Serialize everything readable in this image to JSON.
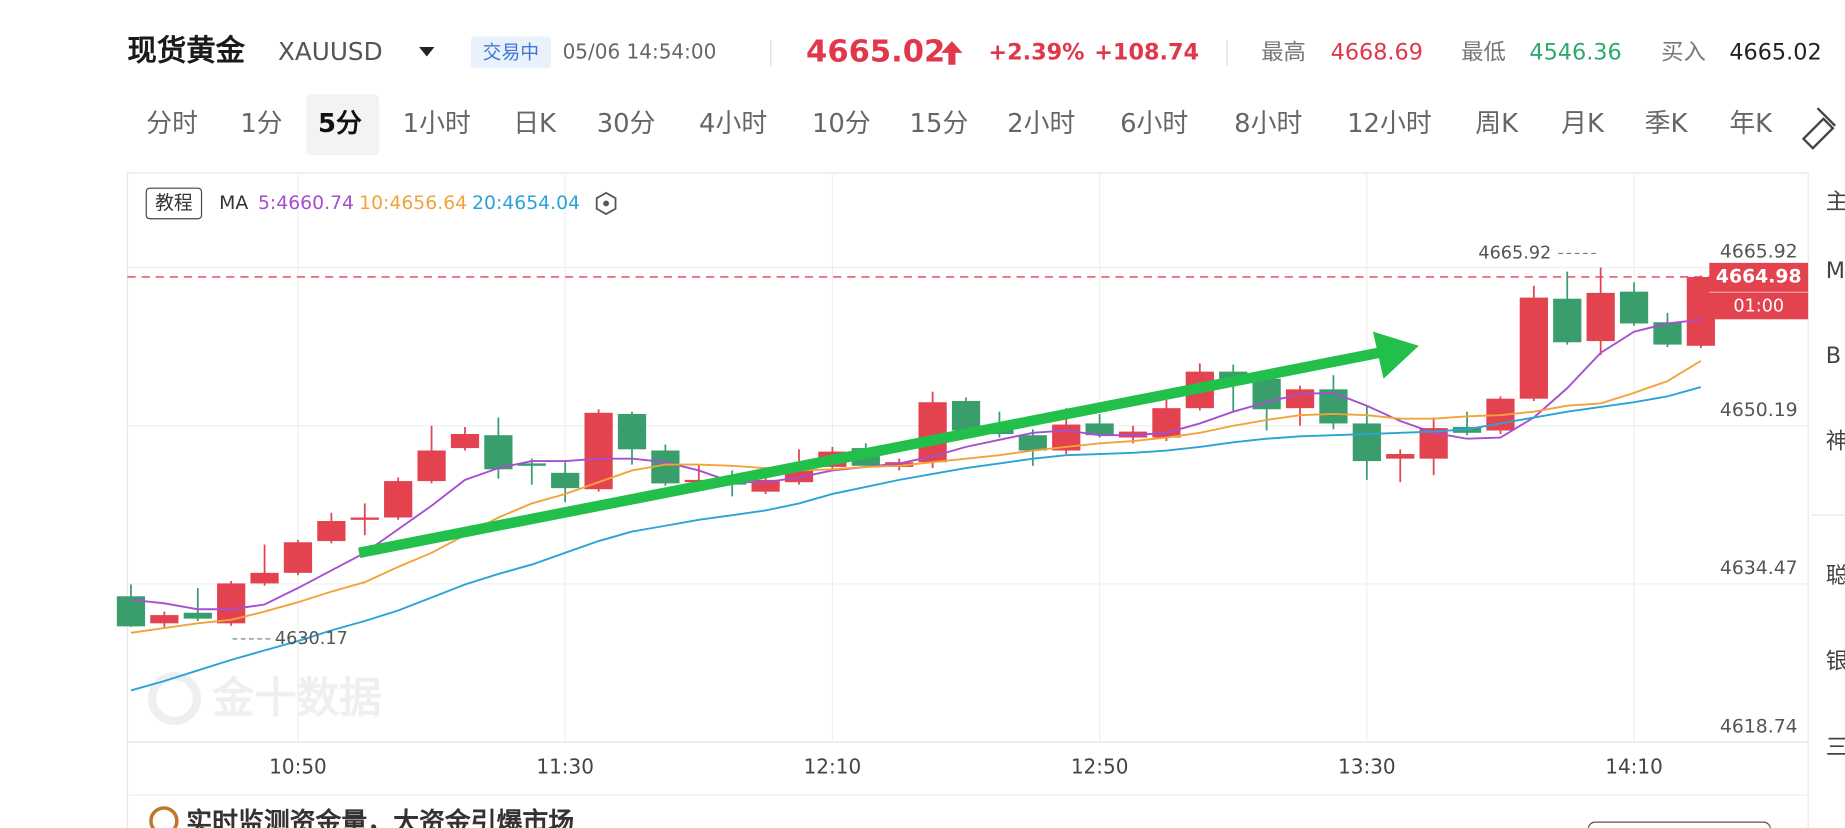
{
  "header": {
    "name": "现货黄金",
    "symbol": "XAUUSD",
    "status": "交易中",
    "time": "05/06 14:54:00",
    "price": 4665.02,
    "change_pct": "+2.39%",
    "change": "+108.74",
    "high_label": "最高",
    "high": 4668.69,
    "low_label": "最低",
    "low": 4546.36,
    "bid_label": "买入",
    "bid": 4665.02
  },
  "tabs": [
    "分时",
    "1分",
    "5分",
    "1小时",
    "日K",
    "30分",
    "4小时",
    "10分",
    "15分",
    "2小时",
    "6小时",
    "8小时",
    "12小时",
    "周K",
    "月K",
    "季K",
    "年K"
  ],
  "selected_tab": 2,
  "tutorial": "教程",
  "sidebar": [
    "主",
    "M",
    "B",
    "神",
    "聪",
    "银",
    "三"
  ],
  "watermark": "金十数据",
  "banner": "实时监测资金量，大资金引爆市场",
  "chart_data": {
    "type": "candlestick",
    "indicator": "MA",
    "countdown": "01:00",
    "categories": [
      null,
      null,
      null,
      null,
      null,
      "10:50",
      null,
      null,
      null,
      null,
      null,
      null,
      null,
      "11:30",
      null,
      null,
      null,
      null,
      null,
      null,
      null,
      "12:10",
      null,
      null,
      null,
      null,
      null,
      null,
      null,
      "12:50",
      null,
      null,
      null,
      null,
      null,
      null,
      null,
      "13:30",
      null,
      null,
      null,
      null,
      null,
      null,
      null,
      "14:10",
      null,
      null
    ],
    "open": [
      4633.24,
      4630.55,
      4631.6,
      4630.55,
      4634.52,
      4635.57,
      4638.73,
      4640.84,
      4641.07,
      4644.69,
      4647.97,
      4649.25,
      4646.45,
      4645.51,
      4643.88,
      4651.36,
      4647.73,
      4644.58,
      4644.81,
      4643.64,
      4644.58,
      4646.1,
      4647.97,
      4646.1,
      4646.57,
      4652.65,
      4650.19,
      4649.25,
      4647.73,
      4650.42,
      4649.02,
      4649.02,
      4651.94,
      4655.57,
      4654.87,
      4651.94,
      4653.81,
      4650.42,
      4646.92,
      4646.92,
      4650.07,
      4649.72,
      4652.88,
      4662.82,
      4658.61,
      4663.52,
      4660.48,
      4658.14
    ],
    "high": [
      4634.41,
      4631.72,
      4634.06,
      4634.76,
      4638.38,
      4638.85,
      4641.54,
      4642.47,
      4645.05,
      4650.19,
      4650.07,
      4651.01,
      4646.92,
      4646.57,
      4651.83,
      4651.59,
      4648.32,
      4646.33,
      4645.75,
      4645.51,
      4647.85,
      4648.09,
      4648.44,
      4646.92,
      4653.58,
      4653.0,
      4651.59,
      4649.84,
      4651.94,
      4651.36,
      4650.19,
      4652.76,
      4656.39,
      4656.27,
      4655.1,
      4654.17,
      4655.22,
      4652.18,
      4647.85,
      4651.01,
      4651.59,
      4653.11,
      4664.1,
      4665.51,
      4665.92,
      4664.45,
      4661.41,
      4665.1
    ],
    "low": [
      4630.2,
      4630.17,
      4630.78,
      4630.31,
      4634.29,
      4635.34,
      4638.5,
      4639.32,
      4640.84,
      4644.46,
      4647.73,
      4644.93,
      4644.34,
      4642.59,
      4643.64,
      4646.33,
      4644.23,
      4643.99,
      4643.17,
      4643.41,
      4644.34,
      4645.75,
      4645.98,
      4645.75,
      4645.98,
      4649.25,
      4649.02,
      4646.21,
      4647.38,
      4649.02,
      4648.44,
      4648.67,
      4651.71,
      4651.59,
      4649.72,
      4650.19,
      4649.84,
      4644.81,
      4644.58,
      4645.28,
      4649.25,
      4649.37,
      4652.65,
      4658.26,
      4657.21,
      4660.13,
      4658.02,
      4657.91
    ],
    "close": [
      4630.25,
      4631.37,
      4631.02,
      4634.52,
      4635.57,
      4638.61,
      4640.72,
      4641.07,
      4644.69,
      4647.73,
      4649.37,
      4645.86,
      4646.21,
      4643.99,
      4651.48,
      4647.85,
      4644.46,
      4644.81,
      4644.34,
      4644.81,
      4646.1,
      4647.62,
      4646.21,
      4646.57,
      4652.53,
      4649.72,
      4649.37,
      4647.73,
      4650.31,
      4649.25,
      4649.61,
      4651.94,
      4655.57,
      4654.87,
      4651.83,
      4653.81,
      4650.42,
      4646.68,
      4647.38,
      4649.96,
      4649.49,
      4652.88,
      4662.93,
      4658.49,
      4663.4,
      4660.36,
      4658.26,
      4664.98
    ],
    "up_color": "#e3424f",
    "down_color": "#3a9d6c",
    "series": [
      {
        "name": "5:4660.74",
        "color": "#a64fd0",
        "values": [
          4632.89,
          4632.54,
          4631.95,
          4631.95,
          4632.42,
          4634.06,
          4635.81,
          4637.56,
          4639.9,
          4642.24,
          4644.81,
          4645.98,
          4646.68,
          4646.68,
          4646.92,
          4646.92,
          4646.57,
          4645.75,
          4644.58,
          4644.58,
          4645.05,
          4645.75,
          4646.1,
          4646.45,
          4647.15,
          4648.09,
          4648.79,
          4649.49,
          4649.72,
          4649.25,
          4649.25,
          4649.49,
          4650.42,
          4651.59,
          4652.53,
          4653.35,
          4653.46,
          4652.18,
          4650.66,
          4649.49,
          4648.9,
          4649.02,
          4651.01,
          4653.93,
          4657.44,
          4659.54,
          4660.36,
          4660.74
        ]
      },
      {
        "name": "10:4656.64",
        "color": "#f2a33a",
        "values": [
          4629.61,
          4630.08,
          4630.55,
          4630.9,
          4631.72,
          4632.65,
          4633.7,
          4634.64,
          4636.16,
          4637.56,
          4639.32,
          4641.07,
          4642.47,
          4643.41,
          4644.58,
          4645.75,
          4646.33,
          4646.33,
          4646.21,
          4645.98,
          4645.75,
          4645.86,
          4646.1,
          4646.21,
          4646.57,
          4646.92,
          4647.27,
          4647.73,
          4648.09,
          4648.44,
          4648.67,
          4649.02,
          4649.49,
          4650.19,
          4650.77,
          4651.24,
          4651.36,
          4651.24,
          4650.89,
          4650.89,
          4651.13,
          4651.24,
          4651.59,
          4652.18,
          4652.41,
          4653.46,
          4654.63,
          4656.64
        ]
      },
      {
        "name": "20:4654.04",
        "color": "#2ba3d4",
        "values": [
          4623.88,
          4624.82,
          4625.87,
          4626.92,
          4627.86,
          4628.79,
          4629.85,
          4630.78,
          4631.83,
          4633.12,
          4634.41,
          4635.46,
          4636.39,
          4637.56,
          4638.73,
          4639.67,
          4640.25,
          4640.84,
          4641.3,
          4641.77,
          4642.47,
          4643.41,
          4644.11,
          4644.81,
          4645.4,
          4645.98,
          4646.45,
          4646.92,
          4647.27,
          4647.38,
          4647.5,
          4647.73,
          4648.09,
          4648.55,
          4648.9,
          4649.14,
          4649.25,
          4649.37,
          4649.49,
          4649.61,
          4649.84,
          4650.42,
          4651.01,
          4651.59,
          4652.06,
          4652.53,
          4653.11,
          4654.04
        ]
      }
    ],
    "ylim": [
      4618.74,
      4675.21
    ],
    "yticks": [
      4618.74,
      4634.47,
      4650.19,
      4665.92
    ],
    "grid": true
  }
}
